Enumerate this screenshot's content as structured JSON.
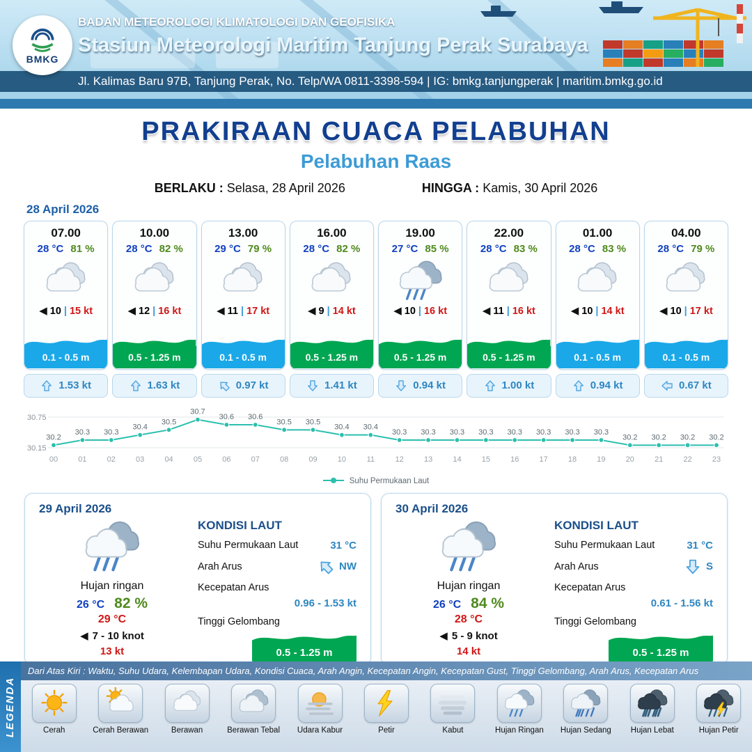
{
  "header": {
    "logo": "BMKG",
    "agency": "BADAN METEOROLOGI KLIMATOLOGI DAN GEOFISIKA",
    "station": "Stasiun Meteorologi Maritim Tanjung Perak Surabaya",
    "address": "Jl. Kalimas Baru 97B, Tanjung Perak, No. Telp/WA 0811-3398-594 | IG: bmkg.tanjungperak | maritim.bmkg.go.id"
  },
  "title": {
    "main": "PRAKIRAAN CUACA PELABUHAN",
    "port": "Pelabuhan Raas",
    "berlaku_label": "BERLAKU :",
    "berlaku": "Selasa, 28 April 2026",
    "hingga_label": "HINGGA :",
    "hingga": "Kamis, 30 April 2026"
  },
  "forecast": {
    "date": "28 April 2026",
    "sep": "|",
    "cards": [
      {
        "time": "07.00",
        "temp": "28 °C",
        "humidity": "81 %",
        "icon": "berawan",
        "wind": "10",
        "gust": "15 kt",
        "wave": "0.1 - 0.5 m",
        "wave_level": "blue",
        "current_dir": "up",
        "current": "1.53 kt"
      },
      {
        "time": "10.00",
        "temp": "28 °C",
        "humidity": "82 %",
        "icon": "berawan",
        "wind": "12",
        "gust": "16 kt",
        "wave": "0.5 - 1.25 m",
        "wave_level": "green",
        "current_dir": "up",
        "current": "1.63 kt"
      },
      {
        "time": "13.00",
        "temp": "29 °C",
        "humidity": "79 %",
        "icon": "berawan",
        "wind": "11",
        "gust": "17 kt",
        "wave": "0.1 - 0.5 m",
        "wave_level": "blue",
        "current_dir": "nw",
        "current": "0.97 kt"
      },
      {
        "time": "16.00",
        "temp": "28 °C",
        "humidity": "82 %",
        "icon": "berawan",
        "wind": "9",
        "gust": "14 kt",
        "wave": "0.5 - 1.25 m",
        "wave_level": "green",
        "current_dir": "down",
        "current": "1.41 kt"
      },
      {
        "time": "19.00",
        "temp": "27 °C",
        "humidity": "85 %",
        "icon": "hujan-ringan",
        "wind": "10",
        "gust": "16 kt",
        "wave": "0.5 - 1.25 m",
        "wave_level": "green",
        "current_dir": "down",
        "current": "0.94 kt"
      },
      {
        "time": "22.00",
        "temp": "28 °C",
        "humidity": "83 %",
        "icon": "berawan",
        "wind": "11",
        "gust": "16 kt",
        "wave": "0.5 - 1.25 m",
        "wave_level": "green",
        "current_dir": "up",
        "current": "1.00 kt"
      },
      {
        "time": "01.00",
        "temp": "28 °C",
        "humidity": "83 %",
        "icon": "berawan",
        "wind": "10",
        "gust": "14 kt",
        "wave": "0.1 - 0.5 m",
        "wave_level": "blue",
        "current_dir": "up",
        "current": "0.94 kt"
      },
      {
        "time": "04.00",
        "temp": "28 °C",
        "humidity": "79 %",
        "icon": "berawan",
        "wind": "10",
        "gust": "17 kt",
        "wave": "0.1 - 0.5 m",
        "wave_level": "blue",
        "current_dir": "left",
        "current": "0.67 kt"
      }
    ]
  },
  "chart_data": {
    "type": "line",
    "legend": "Suhu Permukaan Laut",
    "x": [
      "00",
      "01",
      "02",
      "03",
      "04",
      "05",
      "06",
      "07",
      "08",
      "09",
      "10",
      "11",
      "12",
      "13",
      "14",
      "15",
      "16",
      "17",
      "18",
      "19",
      "20",
      "21",
      "22",
      "23"
    ],
    "values": [
      30.2,
      30.3,
      30.3,
      30.4,
      30.5,
      30.7,
      30.6,
      30.6,
      30.5,
      30.5,
      30.4,
      30.4,
      30.3,
      30.3,
      30.3,
      30.3,
      30.3,
      30.3,
      30.3,
      30.3,
      30.2,
      30.2,
      30.2,
      30.2
    ],
    "ylim": [
      30.15,
      30.75
    ],
    "yticks": [
      "30.75",
      "30.15"
    ],
    "line_color": "#2bbfae",
    "grid": true,
    "legend_position": "bottom"
  },
  "outlook": [
    {
      "date": "29 April 2026",
      "icon": "hujan-ringan",
      "condition": "Hujan ringan",
      "temp_min": "26 °C",
      "humidity": "82 %",
      "temp_max": "29 °C",
      "wind": "7 - 10 knot",
      "gust": "13 kt",
      "sea": {
        "title": "KONDISI LAUT",
        "sst_label": "Suhu Permukaan Laut",
        "sst": "31 °C",
        "dir_label": "Arah Arus",
        "dir": "NW",
        "dir_arrow": "nw",
        "speed_label": "Kecepatan Arus",
        "speed": "0.96 - 1.53 kt",
        "wave_label": "Tinggi Gelombang",
        "wave": "0.5 - 1.25 m"
      }
    },
    {
      "date": "30 April 2026",
      "icon": "hujan-ringan",
      "condition": "Hujan ringan",
      "temp_min": "26 °C",
      "humidity": "84 %",
      "temp_max": "28 °C",
      "wind": "5 - 9 knot",
      "gust": "14 kt",
      "sea": {
        "title": "KONDISI LAUT",
        "sst_label": "Suhu Permukaan Laut",
        "sst": "31 °C",
        "dir_label": "Arah Arus",
        "dir": "S",
        "dir_arrow": "down",
        "speed_label": "Kecepatan Arus",
        "speed": "0.61 - 1.56 kt",
        "wave_label": "Tinggi Gelombang",
        "wave": "0.5 - 1.25 m"
      }
    }
  ],
  "legend": {
    "title": "LEGENDA",
    "note": "Dari Atas Kiri : Waktu, Suhu Udara, Kelembapan Udara, Kondisi Cuaca, Arah Angin, Kecepatan Angin, Kecepatan Gust, Tinggi Gelombang, Arah Arus, Kecepatan Arus",
    "items": [
      {
        "label": "Cerah",
        "icon": "cerah"
      },
      {
        "label": "Cerah Berawan",
        "icon": "cerah-berawan"
      },
      {
        "label": "Berawan",
        "icon": "berawan"
      },
      {
        "label": "Berawan Tebal",
        "icon": "berawan-tebal"
      },
      {
        "label": "Udara Kabur",
        "icon": "udara-kabur"
      },
      {
        "label": "Petir",
        "icon": "petir"
      },
      {
        "label": "Kabut",
        "icon": "kabut"
      },
      {
        "label": "Hujan Ringan",
        "icon": "hujan-ringan"
      },
      {
        "label": "Hujan Sedang",
        "icon": "hujan-sedang"
      },
      {
        "label": "Hujan Lebat",
        "icon": "hujan-lebat"
      },
      {
        "label": "Hujan Petir",
        "icon": "hujan-petir"
      }
    ]
  },
  "colors": {
    "temp": "#1040c0",
    "humidity": "#4f8a1d",
    "gust": "#d01616",
    "wave_low": "#1ba8e8",
    "wave_moderate": "#00a651",
    "current": "#2e86c1",
    "chart_line": "#2bbfae",
    "title": "#123f8f",
    "port": "#3d9bd5"
  }
}
